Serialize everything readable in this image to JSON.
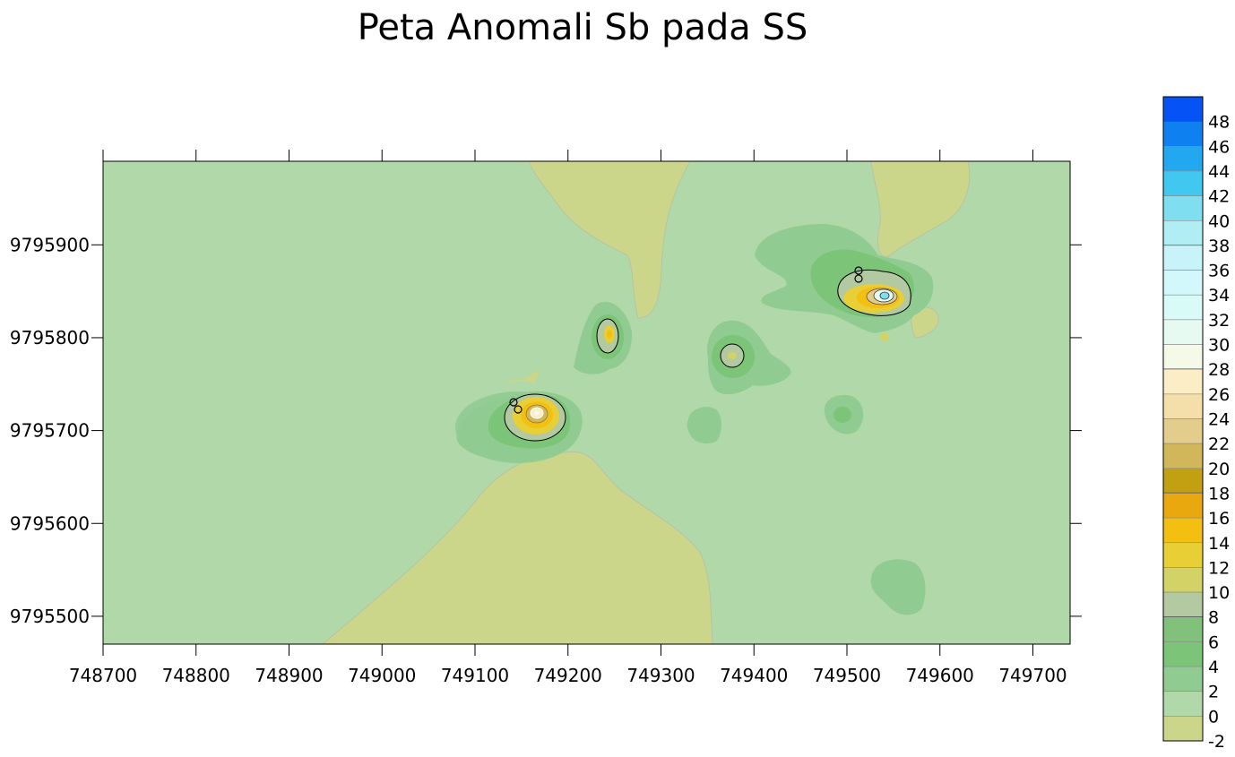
{
  "chart_data": {
    "type": "heatmap",
    "title": "Peta Anomali Sb pada SS",
    "xlabel": "",
    "ylabel": "",
    "xlim": [
      748700,
      749740
    ],
    "ylim": [
      9795470,
      9795990
    ],
    "x_ticks": [
      748700,
      748800,
      748900,
      749000,
      749100,
      749200,
      749300,
      749400,
      749500,
      749600,
      749700
    ],
    "y_ticks": [
      9795500,
      9795600,
      9795700,
      9795800,
      9795900
    ],
    "x_tick_labels": [
      "748700",
      "748800",
      "748900",
      "749000",
      "749100",
      "749200",
      "749300",
      "749400",
      "749500",
      "749600",
      "749700"
    ],
    "y_tick_labels": [
      "9795500",
      "9795600",
      "9795700",
      "9795800",
      "9795900"
    ],
    "grid": false,
    "legend_placement": "right",
    "color_levels": [
      {
        "min": -2,
        "max": 0,
        "color": "#cbd68b"
      },
      {
        "min": 0,
        "max": 2,
        "color": "#b1d8a8"
      },
      {
        "min": 2,
        "max": 4,
        "color": "#90cc92"
      },
      {
        "min": 4,
        "max": 6,
        "color": "#7cc478"
      },
      {
        "min": 6,
        "max": 8,
        "color": "#82c17c"
      },
      {
        "min": 8,
        "max": 10,
        "color": "#b2c9a2"
      },
      {
        "min": 10,
        "max": 12,
        "color": "#d3d266"
      },
      {
        "min": 12,
        "max": 14,
        "color": "#e7cf35"
      },
      {
        "min": 14,
        "max": 16,
        "color": "#f3c012"
      },
      {
        "min": 16,
        "max": 18,
        "color": "#e9a80e"
      },
      {
        "min": 18,
        "max": 20,
        "color": "#c1a012"
      },
      {
        "min": 20,
        "max": 22,
        "color": "#d1b65a"
      },
      {
        "min": 22,
        "max": 24,
        "color": "#e3cd8d"
      },
      {
        "min": 24,
        "max": 26,
        "color": "#f4dfaa"
      },
      {
        "min": 26,
        "max": 28,
        "color": "#fbedc6"
      },
      {
        "min": 28,
        "max": 30,
        "color": "#f5f9e8"
      },
      {
        "min": 30,
        "max": 32,
        "color": "#e6faf2"
      },
      {
        "min": 32,
        "max": 34,
        "color": "#d8fbf8"
      },
      {
        "min": 34,
        "max": 36,
        "color": "#d3f8fb"
      },
      {
        "min": 36,
        "max": 38,
        "color": "#c8f3f8"
      },
      {
        "min": 38,
        "max": 40,
        "color": "#b0eef4"
      },
      {
        "min": 40,
        "max": 42,
        "color": "#7fdff1"
      },
      {
        "min": 42,
        "max": 44,
        "color": "#40c8f0"
      },
      {
        "min": 44,
        "max": 46,
        "color": "#22a8ee"
      },
      {
        "min": 46,
        "max": 48,
        "color": "#0f80ef"
      },
      {
        "min": 48,
        "max": 50,
        "color": "#0553f5"
      }
    ],
    "legend_labels": [
      "48",
      "46",
      "44",
      "42",
      "40",
      "38",
      "36",
      "34",
      "32",
      "30",
      "28",
      "26",
      "24",
      "22",
      "20",
      "18",
      "16",
      "14",
      "12",
      "10",
      "8",
      "6",
      "4",
      "2",
      "0",
      "-2"
    ],
    "anomalies": [
      {
        "x": 749165,
        "y": 9795720,
        "peak": 30
      },
      {
        "x": 749243,
        "y": 9795804,
        "peak": 14
      },
      {
        "x": 749374,
        "y": 9795782,
        "peak": 11
      },
      {
        "x": 749537,
        "y": 9795845,
        "peak": 40
      },
      {
        "x": 749493,
        "y": 9795718,
        "peak": 5
      },
      {
        "x": 749577,
        "y": 9795537,
        "peak": 3
      }
    ],
    "background_value": 1
  }
}
